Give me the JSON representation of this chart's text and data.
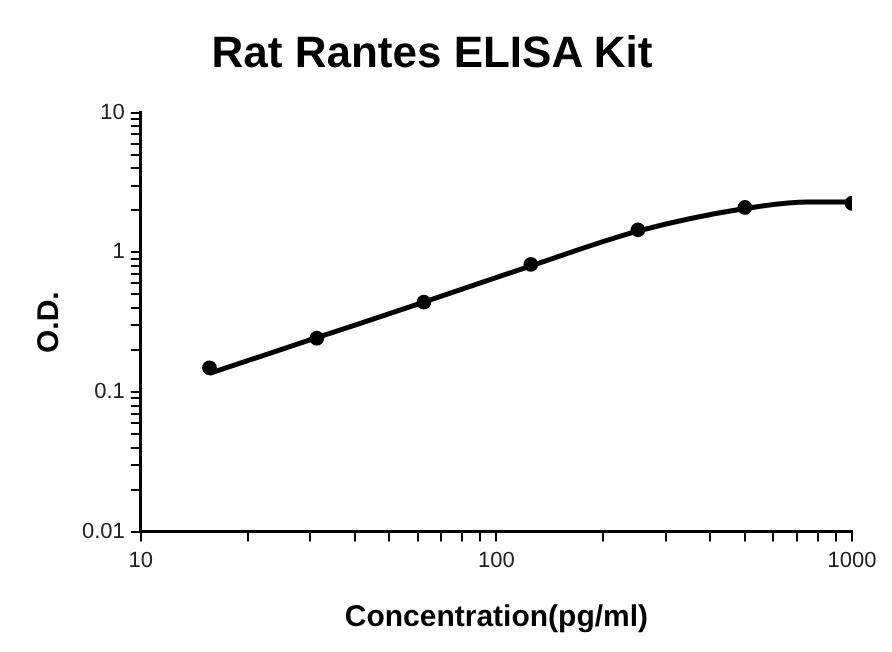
{
  "chart_data": {
    "type": "scatter",
    "title": "Rat Rantes ELISA Kit",
    "xlabel": "Concentration(pg/ml)",
    "ylabel": "O.D.",
    "log": "xy",
    "grid": false,
    "legend": false,
    "marker": "circle",
    "xlim": [
      10,
      1000
    ],
    "ylim": [
      0.01,
      10
    ],
    "xticks": [
      10,
      {
        "value": 20,
        "label": null
      },
      {
        "value": 30,
        "label": null
      },
      {
        "value": 40,
        "label": null
      },
      {
        "value": 50,
        "label": null
      },
      {
        "value": 60,
        "label": null
      },
      {
        "value": 70,
        "label": null
      },
      {
        "value": 80,
        "label": null
      },
      {
        "value": 90,
        "label": null
      },
      100,
      {
        "value": 200,
        "label": null
      },
      {
        "value": 300,
        "label": null
      },
      {
        "value": 400,
        "label": null
      },
      {
        "value": 500,
        "label": null
      },
      {
        "value": 600,
        "label": null
      },
      {
        "value": 700,
        "label": null
      },
      {
        "value": 800,
        "label": null
      },
      {
        "value": 900,
        "label": null
      },
      1000
    ],
    "yticks": [
      0.01,
      {
        "value": 0.02,
        "label": null
      },
      {
        "value": 0.03,
        "label": null
      },
      {
        "value": 0.04,
        "label": null
      },
      {
        "value": 0.05,
        "label": null
      },
      {
        "value": 0.06,
        "label": null
      },
      {
        "value": 0.07,
        "label": null
      },
      {
        "value": 0.08,
        "label": null
      },
      {
        "value": 0.09,
        "label": null
      },
      0.1,
      {
        "value": 0.2,
        "label": null
      },
      {
        "value": 0.3,
        "label": null
      },
      {
        "value": 0.4,
        "label": null
      },
      {
        "value": 0.5,
        "label": null
      },
      {
        "value": 0.6,
        "label": null
      },
      {
        "value": 0.7,
        "label": null
      },
      {
        "value": 0.8,
        "label": null
      },
      {
        "value": 0.9,
        "label": null
      },
      1,
      {
        "value": 2,
        "label": null
      },
      {
        "value": 3,
        "label": null
      },
      {
        "value": 4,
        "label": null
      },
      {
        "value": 5,
        "label": null
      },
      {
        "value": 6,
        "label": null
      },
      {
        "value": 7,
        "label": null
      },
      {
        "value": 8,
        "label": null
      },
      {
        "value": 9,
        "label": null
      },
      10
    ],
    "series": [
      {
        "color": "#000000",
        "x": [
          15.6,
          31.25,
          62.5,
          125,
          250,
          500,
          1000
        ],
        "values": [
          0.149,
          0.243,
          0.44,
          0.82,
          1.45,
          2.1,
          2.25
        ]
      },
      {
        "type": "line",
        "color": "#000000",
        "marker": "none",
        "line_style": "solid",
        "x": [
          15.6,
          31.25,
          62.5,
          125,
          250,
          500,
          750,
          1000
        ],
        "values": [
          0.136,
          0.245,
          0.44,
          0.8,
          1.42,
          2.06,
          2.3,
          2.3
        ]
      }
    ]
  }
}
